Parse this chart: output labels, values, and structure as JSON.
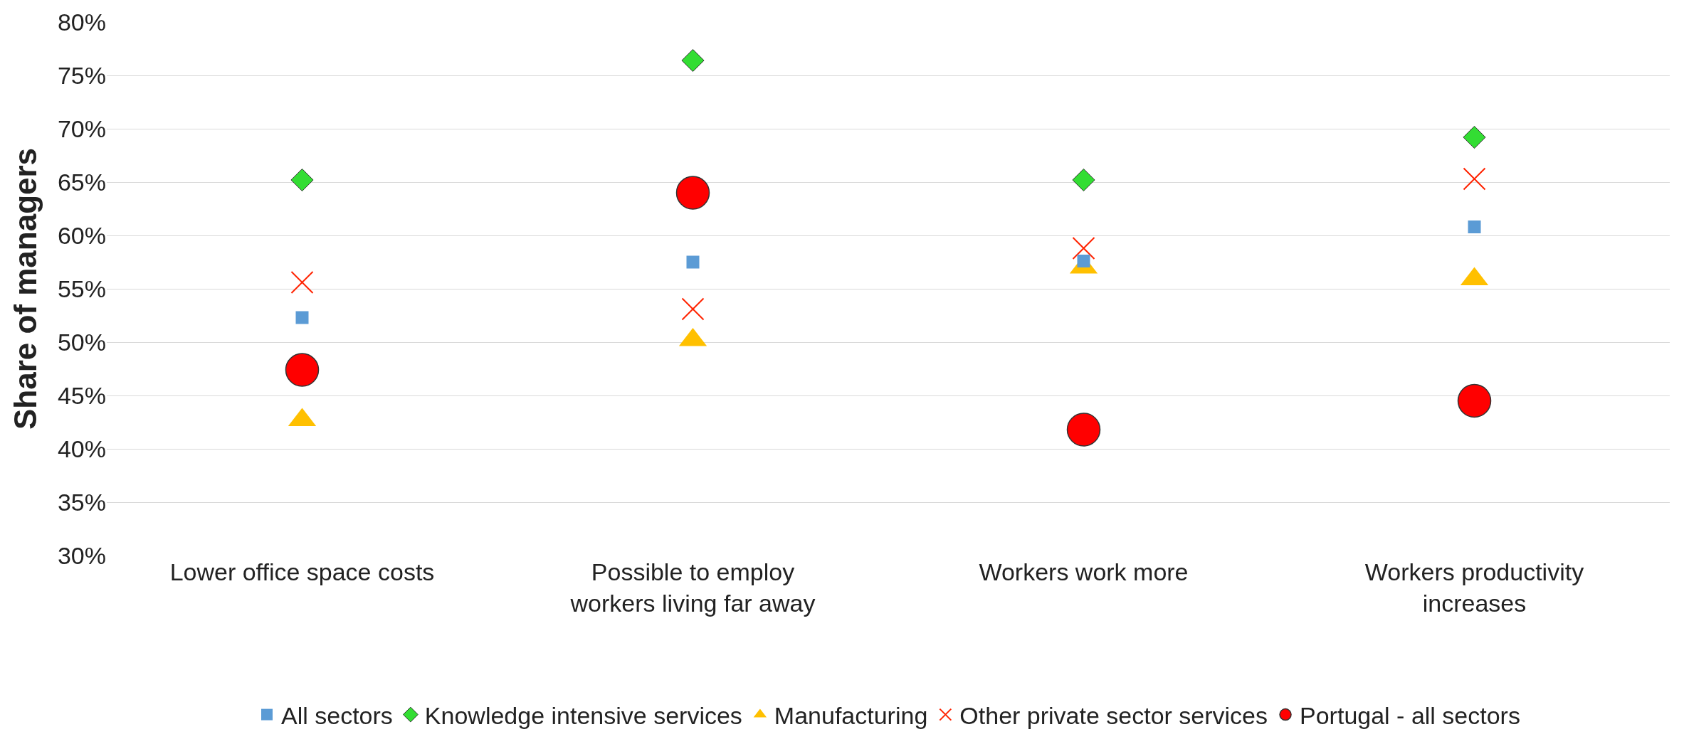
{
  "chart_data": {
    "type": "scatter",
    "ylabel": "Share of managers",
    "categories": [
      "Lower office space costs",
      "Possible to employ workers living far away",
      "Workers work more",
      "Workers productivity increases"
    ],
    "series": [
      {
        "name": "All sectors",
        "color": "#5b9bd5",
        "marker": "square",
        "values": [
          52.3,
          57.5,
          57.6,
          60.8
        ]
      },
      {
        "name": "Knowledge intensive services",
        "color": "#33dd33",
        "marker": "diamond",
        "values": [
          65.2,
          76.4,
          65.2,
          69.2
        ]
      },
      {
        "name": "Manufacturing",
        "color": "#ffc000",
        "marker": "triangle",
        "values": [
          42.7,
          50.2,
          57.0,
          55.9
        ]
      },
      {
        "name": "Other private sector services",
        "color": "#ff2200",
        "marker": "cross",
        "values": [
          55.6,
          53.1,
          58.8,
          65.3
        ]
      },
      {
        "name": "Portugal - all sectors",
        "color": "#ff0000",
        "marker": "circle",
        "values": [
          47.4,
          64.0,
          41.8,
          44.5
        ]
      }
    ],
    "ylim": [
      30,
      80
    ],
    "yticks": [
      {
        "value": 30,
        "label": "30%"
      },
      {
        "value": 35,
        "label": "35%"
      },
      {
        "value": 40,
        "label": "40%"
      },
      {
        "value": 45,
        "label": "45%"
      },
      {
        "value": 50,
        "label": "50%"
      },
      {
        "value": 55,
        "label": "55%"
      },
      {
        "value": 60,
        "label": "60%"
      },
      {
        "value": 65,
        "label": "65%"
      },
      {
        "value": 70,
        "label": "70%"
      },
      {
        "value": 75,
        "label": "75%"
      },
      {
        "value": 80,
        "label": "80%"
      }
    ],
    "grid": "y",
    "legend": "bottom"
  }
}
